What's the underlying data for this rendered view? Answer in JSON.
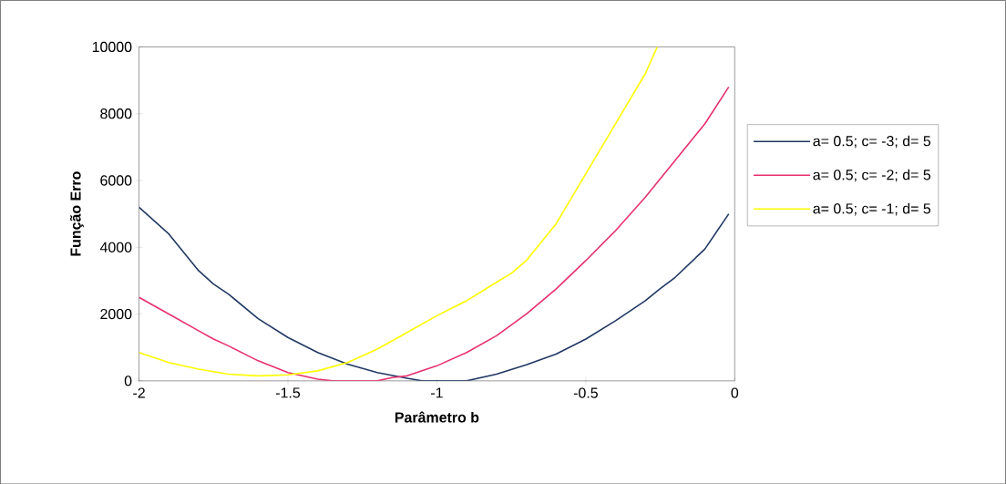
{
  "chart_data": {
    "type": "line",
    "xlabel": "Parâmetro b",
    "ylabel": "Função Erro",
    "xlim": [
      -2,
      0
    ],
    "ylim": [
      0,
      10000
    ],
    "xticks": [
      -2,
      -1.5,
      -1,
      -0.5,
      0
    ],
    "yticks": [
      0,
      2000,
      4000,
      6000,
      8000,
      10000
    ],
    "legend": "right",
    "line_style": "solid",
    "series": [
      {
        "name": "a= 0.5; c= -3; d= 5",
        "color": "#203864",
        "x": [
          -2,
          -1.9,
          -1.8,
          -1.75,
          -1.7,
          -1.6,
          -1.5,
          -1.4,
          -1.3,
          -1.2,
          -1.1,
          -1.05,
          -0.9,
          -0.8,
          -0.7,
          -0.6,
          -0.5,
          -0.4,
          -0.3,
          -0.25,
          -0.2,
          -0.1,
          -0.02
        ],
        "values": [
          5200,
          4400,
          3300,
          2900,
          2600,
          1860,
          1300,
          850,
          500,
          250,
          80,
          0,
          0,
          200,
          480,
          800,
          1250,
          1800,
          2400,
          2760,
          3100,
          3950,
          5000
        ]
      },
      {
        "name": "a= 0.5; c= -2; d= 5",
        "color": "#e6306e",
        "x": [
          -2,
          -1.9,
          -1.8,
          -1.75,
          -1.7,
          -1.6,
          -1.5,
          -1.4,
          -1.35,
          -1.2,
          -1.15,
          -1.1,
          -1.0,
          -0.9,
          -0.8,
          -0.7,
          -0.6,
          -0.5,
          -0.4,
          -0.3,
          -0.2,
          -0.1,
          -0.02
        ],
        "values": [
          2500,
          2000,
          1500,
          1250,
          1050,
          600,
          250,
          50,
          0,
          0,
          100,
          150,
          450,
          850,
          1350,
          2000,
          2750,
          3600,
          4500,
          5500,
          6600,
          7700,
          8800
        ]
      },
      {
        "name": "a= 0.5; c= -1; d= 5",
        "color": "#ffff00",
        "x": [
          -2,
          -1.9,
          -1.8,
          -1.7,
          -1.6,
          -1.5,
          -1.4,
          -1.3,
          -1.2,
          -1.1,
          -1.0,
          -0.9,
          -0.8,
          -0.75,
          -0.7,
          -0.6,
          -0.5,
          -0.4,
          -0.3,
          -0.26
        ],
        "values": [
          850,
          550,
          350,
          200,
          150,
          180,
          300,
          550,
          950,
          1450,
          1950,
          2400,
          2950,
          3220,
          3600,
          4700,
          6200,
          7700,
          9200,
          10000
        ]
      }
    ]
  }
}
